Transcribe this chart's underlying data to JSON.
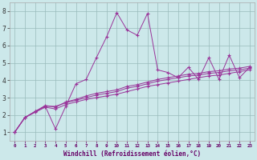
{
  "xlabel": "Windchill (Refroidissement éolien,°C)",
  "background_color": "#cce8ea",
  "line_color": "#993399",
  "grid_color": "#99bbbb",
  "xlim": [
    -0.5,
    23.5
  ],
  "ylim": [
    0.5,
    8.5
  ],
  "xticks": [
    0,
    1,
    2,
    3,
    4,
    5,
    6,
    7,
    8,
    9,
    10,
    11,
    12,
    13,
    14,
    15,
    16,
    17,
    18,
    19,
    20,
    21,
    22,
    23
  ],
  "yticks": [
    1,
    2,
    3,
    4,
    5,
    6,
    7,
    8
  ],
  "series": [
    [
      1.0,
      1.85,
      2.2,
      2.5,
      1.2,
      2.5,
      3.8,
      4.05,
      5.3,
      6.5,
      7.9,
      6.9,
      6.6,
      7.85,
      4.6,
      4.45,
      4.15,
      4.75,
      4.05,
      5.3,
      4.05,
      5.45,
      4.15,
      4.75
    ],
    [
      1.0,
      1.85,
      2.2,
      2.55,
      2.45,
      2.75,
      2.9,
      3.1,
      3.25,
      3.35,
      3.45,
      3.65,
      3.75,
      3.9,
      4.05,
      4.15,
      4.25,
      4.35,
      4.4,
      4.5,
      4.55,
      4.65,
      4.7,
      4.8
    ],
    [
      1.0,
      1.85,
      2.2,
      2.5,
      2.5,
      2.7,
      2.85,
      3.0,
      3.15,
      3.25,
      3.35,
      3.55,
      3.65,
      3.8,
      3.95,
      4.05,
      4.15,
      4.25,
      4.3,
      4.4,
      4.45,
      4.55,
      4.6,
      4.7
    ],
    [
      1.0,
      1.85,
      2.15,
      2.45,
      2.35,
      2.6,
      2.75,
      2.9,
      3.0,
      3.1,
      3.2,
      3.35,
      3.5,
      3.65,
      3.75,
      3.85,
      3.95,
      4.05,
      4.15,
      4.25,
      4.3,
      4.4,
      4.5,
      4.6
    ]
  ]
}
